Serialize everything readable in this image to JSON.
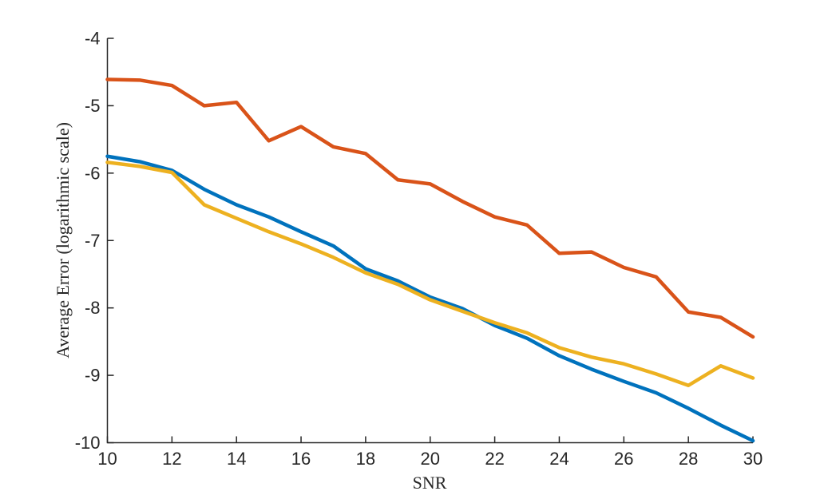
{
  "chart_data": {
    "type": "line",
    "title": "",
    "xlabel": "SNR",
    "ylabel": "Average Error (logarithmic scale)",
    "xlim": [
      10,
      30
    ],
    "ylim": [
      -10,
      -4
    ],
    "xticks": [
      10,
      12,
      14,
      16,
      18,
      20,
      22,
      24,
      26,
      28,
      30
    ],
    "yticks": [
      -10,
      -9,
      -8,
      -7,
      -6,
      -5,
      -4
    ],
    "grid": false,
    "legend": "none",
    "axis_color": "#262626",
    "background_color": "#ffffff",
    "line_width": 4.5,
    "x": [
      10,
      11,
      12,
      13,
      14,
      15,
      16,
      17,
      18,
      19,
      20,
      21,
      22,
      23,
      24,
      25,
      26,
      27,
      28,
      29,
      30
    ],
    "series": [
      {
        "name": "blue-series",
        "color": "#0072BD",
        "values": [
          -5.75,
          -5.83,
          -5.96,
          -6.24,
          -6.47,
          -6.65,
          -6.87,
          -7.08,
          -7.42,
          -7.6,
          -7.84,
          -8.01,
          -8.26,
          -8.45,
          -8.71,
          -8.91,
          -9.09,
          -9.26,
          -9.49,
          -9.74,
          -9.97
        ]
      },
      {
        "name": "orange-series",
        "color": "#D95319",
        "values": [
          -4.61,
          -4.62,
          -4.7,
          -5.0,
          -4.95,
          -5.52,
          -5.31,
          -5.61,
          -5.71,
          -6.1,
          -6.16,
          -6.42,
          -6.65,
          -6.77,
          -7.19,
          -7.17,
          -7.4,
          -7.54,
          -8.06,
          -8.14,
          -8.43
        ]
      },
      {
        "name": "yellow-series",
        "color": "#EDB120",
        "values": [
          -5.84,
          -5.9,
          -5.99,
          -6.47,
          -6.67,
          -6.87,
          -7.05,
          -7.25,
          -7.48,
          -7.65,
          -7.88,
          -8.05,
          -8.22,
          -8.37,
          -8.59,
          -8.73,
          -8.83,
          -8.98,
          -9.15,
          -8.86,
          -9.04
        ]
      }
    ]
  }
}
